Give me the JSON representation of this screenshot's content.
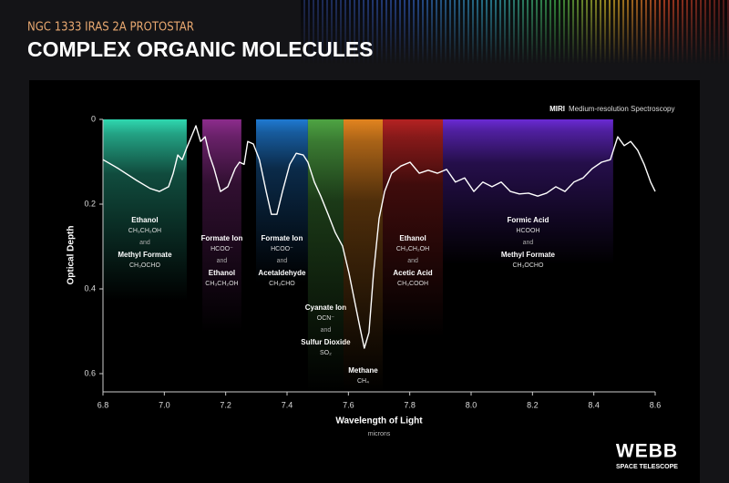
{
  "chart_data": {
    "type": "line",
    "subtitle": "NGC 1333 IRAS 2A PROTOSTAR",
    "title": "COMPLEX ORGANIC MOLECULES",
    "instrument": "MIRI",
    "annotation": "Medium-resolution Spectroscopy",
    "x_label": "Wavelength of Light",
    "x_unit": "microns",
    "y_label": "Optical Depth",
    "xlim": [
      6.8,
      8.6
    ],
    "xticks": [
      6.8,
      {
        "value": 7,
        "label": "7.0"
      },
      7.2,
      7.4,
      7.6,
      7.8,
      {
        "value": 8,
        "label": "8.0"
      },
      8.2,
      8.4,
      8.6
    ],
    "ylim": [
      0,
      0.643
    ],
    "y_inverted": true,
    "yticks": [
      0,
      0.2,
      0.4,
      0.6
    ],
    "color": "#ffffff",
    "x": [
      6.8,
      6.85,
      6.91,
      6.954,
      6.984,
      7.014,
      7.029,
      7.044,
      7.058,
      7.073,
      7.088,
      7.103,
      7.118,
      7.133,
      7.147,
      7.162,
      7.183,
      7.207,
      7.231,
      7.245,
      7.26,
      7.272,
      7.29,
      7.31,
      7.332,
      7.349,
      7.367,
      7.385,
      7.409,
      7.43,
      7.453,
      7.468,
      7.489,
      7.51,
      7.534,
      7.557,
      7.581,
      7.602,
      7.623,
      7.638,
      7.652,
      7.667,
      7.682,
      7.7,
      7.718,
      7.741,
      7.771,
      7.801,
      7.831,
      7.86,
      7.89,
      7.92,
      7.949,
      7.979,
      8.009,
      8.038,
      8.068,
      8.098,
      8.128,
      8.157,
      8.187,
      8.217,
      8.246,
      8.276,
      8.306,
      8.335,
      8.365,
      8.395,
      8.425,
      8.454,
      8.478,
      8.499,
      8.52,
      8.543,
      8.564,
      8.585,
      8.6
    ],
    "values": [
      0.095,
      0.116,
      0.144,
      0.163,
      0.17,
      0.159,
      0.127,
      0.084,
      0.095,
      0.067,
      0.041,
      0.015,
      0.052,
      0.041,
      0.084,
      0.116,
      0.17,
      0.159,
      0.116,
      0.101,
      0.106,
      0.052,
      0.058,
      0.095,
      0.17,
      0.224,
      0.224,
      0.17,
      0.106,
      0.08,
      0.084,
      0.101,
      0.148,
      0.181,
      0.224,
      0.267,
      0.299,
      0.363,
      0.439,
      0.492,
      0.54,
      0.503,
      0.363,
      0.234,
      0.17,
      0.127,
      0.11,
      0.101,
      0.127,
      0.12,
      0.127,
      0.118,
      0.148,
      0.138,
      0.17,
      0.148,
      0.159,
      0.148,
      0.17,
      0.176,
      0.174,
      0.181,
      0.174,
      0.159,
      0.17,
      0.148,
      0.138,
      0.116,
      0.101,
      0.095,
      0.041,
      0.062,
      0.052,
      0.073,
      0.106,
      0.148,
      0.17
    ],
    "bands": [
      {
        "x0": 6.8,
        "x1": 7.073,
        "color": "#2fd8b0",
        "labels": [
          "Ethanol",
          "CH₃CH₂OH",
          "and",
          "Methyl Formate",
          "CH₃OCHO"
        ]
      },
      {
        "x0": 7.124,
        "x1": 7.251,
        "color": "#8c2c8c",
        "labels": [
          "Formate Ion",
          "HCOO⁻",
          "and",
          "Ethanol",
          "CH₃CH₂OH"
        ]
      },
      {
        "x0": 7.299,
        "x1": 7.468,
        "color": "#1f7ad2",
        "labels": [
          "Formate Ion",
          "HCOO⁻",
          "and",
          "Acetaldehyde",
          "CH₃CHO"
        ]
      },
      {
        "x0": 7.468,
        "x1": 7.584,
        "color": "#4ea443",
        "labels": [
          "Cyanate Ion",
          "OCN⁻",
          "and",
          "Sulfur Dioxide",
          "SO₂"
        ]
      },
      {
        "x0": 7.584,
        "x1": 7.712,
        "color": "#e2841f",
        "labels": [
          "Methane",
          "CH₄"
        ]
      },
      {
        "x0": 7.712,
        "x1": 7.908,
        "color": "#b42222",
        "labels": [
          "Ethanol",
          "CH₃CH₂OH",
          "and",
          "Acetic Acid",
          "CH₃COOH"
        ]
      },
      {
        "x0": 7.908,
        "x1": 8.463,
        "color": "#6a2ad4",
        "labels": [
          "Formic Acid",
          "HCOOH",
          "and",
          "Methyl Formate",
          "CH₃OCHO"
        ]
      }
    ],
    "logo_text": "WEBB",
    "logo_subtext": "SPACE TELESCOPE"
  }
}
